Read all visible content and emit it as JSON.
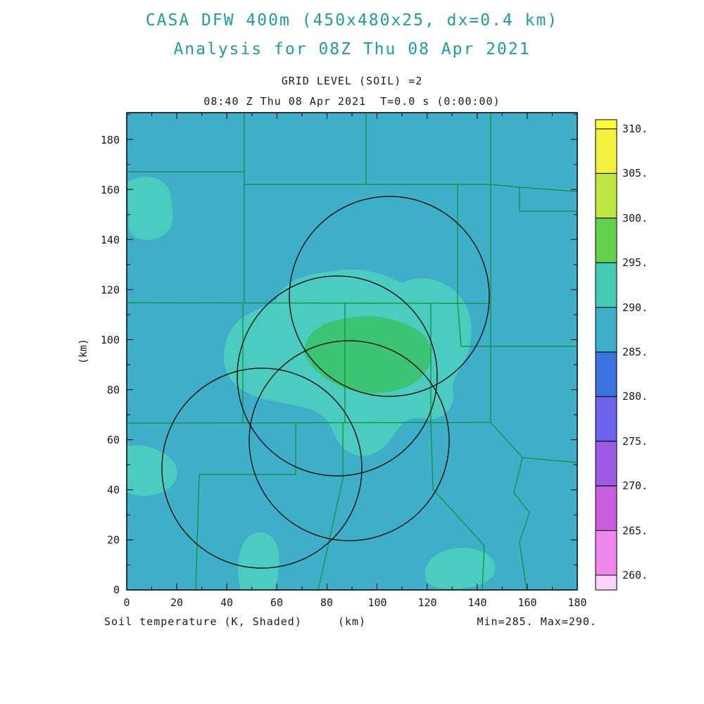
{
  "titles": {
    "line1": "CASA DFW 400m (450x480x25, dx=0.4 km)",
    "line2": "Analysis for 08Z Thu 08 Apr 2021",
    "grid_level": "GRID LEVEL (SOIL) =2",
    "time_line": "08:40 Z Thu 08 Apr 2021  T=0.0 s (0:00:00)"
  },
  "axes": {
    "y_unit": "(km)",
    "x_ticks": [
      "0",
      "20",
      "40",
      "60",
      "80",
      "100",
      "120",
      "140",
      "160",
      "180"
    ],
    "y_ticks": [
      "0",
      "20",
      "40",
      "60",
      "80",
      "100",
      "120",
      "140",
      "160",
      "180"
    ]
  },
  "colorbar": {
    "labels": [
      "310.",
      "305.",
      "300.",
      "295.",
      "290.",
      "285.",
      "280.",
      "275.",
      "270.",
      "265.",
      "260."
    ],
    "colors": [
      "#FFFF38",
      "#F2F03C",
      "#BEE743",
      "#66D14E",
      "#44CBB4",
      "#3FAEC8",
      "#3C72E0",
      "#6B63EC",
      "#9E5BE6",
      "#C95EDE",
      "#EE86EC",
      "#FBD3F6"
    ]
  },
  "footer": {
    "field_label": "Soil temperature (K, Shaded)",
    "x_unit": "(km)",
    "minmax": "Min=285. Max=290."
  },
  "colors": {
    "title": "#1C9E9E",
    "map_background": "#3FAEC8",
    "patch_teal": "#4CCCC0",
    "patch_green": "#3CC474",
    "county_line": "#0A9132",
    "ring": "#000000"
  },
  "chart_data": {
    "type": "heatmap",
    "title": "CASA DFW 400m (450x480x25, dx=0.4 km)",
    "subtitle": "Analysis for 08Z Thu 08 Apr 2021",
    "grid_level": "GRID LEVEL (SOIL) =2",
    "valid_time": "08:40 Z Thu 08 Apr 2021",
    "model_time": "T=0.0 s (0:00:00)",
    "field": "Soil temperature (K, Shaded)",
    "units": "K",
    "xlabel": "(km)",
    "ylabel": "(km)",
    "xlim": [
      0,
      180
    ],
    "ylim": [
      0,
      192
    ],
    "x_ticks": [
      0,
      20,
      40,
      60,
      80,
      100,
      120,
      140,
      160,
      180
    ],
    "y_ticks": [
      0,
      20,
      40,
      60,
      80,
      100,
      120,
      140,
      160,
      180
    ],
    "value_min": 285,
    "value_max": 290,
    "colorbar_levels": [
      260,
      265,
      270,
      275,
      280,
      285,
      290,
      295,
      300,
      305,
      310
    ],
    "legend_position": "right",
    "grid": "off",
    "field_regions": [
      {
        "band_K": "285-290",
        "description": "dominant cyan background over entire domain"
      },
      {
        "band_K": "~290",
        "description": "lighter teal warm patches: NW ~(3-20,138-168) km; W edge ~(0-20,37-58) km; large central band ~(40-137,65-127) km; S ~(45-61,0-20) km; SE ~(118-147,1-16) km"
      },
      {
        "band_K": "~290-292",
        "description": "warmest green core over central metroplex ~(70-122,78-110) km"
      }
    ],
    "radar_rings": {
      "radius_km": 40,
      "centers_km": [
        [
          105,
          118
        ],
        [
          84,
          86
        ],
        [
          54,
          49
        ],
        [
          89,
          60
        ]
      ]
    },
    "county_boundaries": "green county outline overlay"
  }
}
